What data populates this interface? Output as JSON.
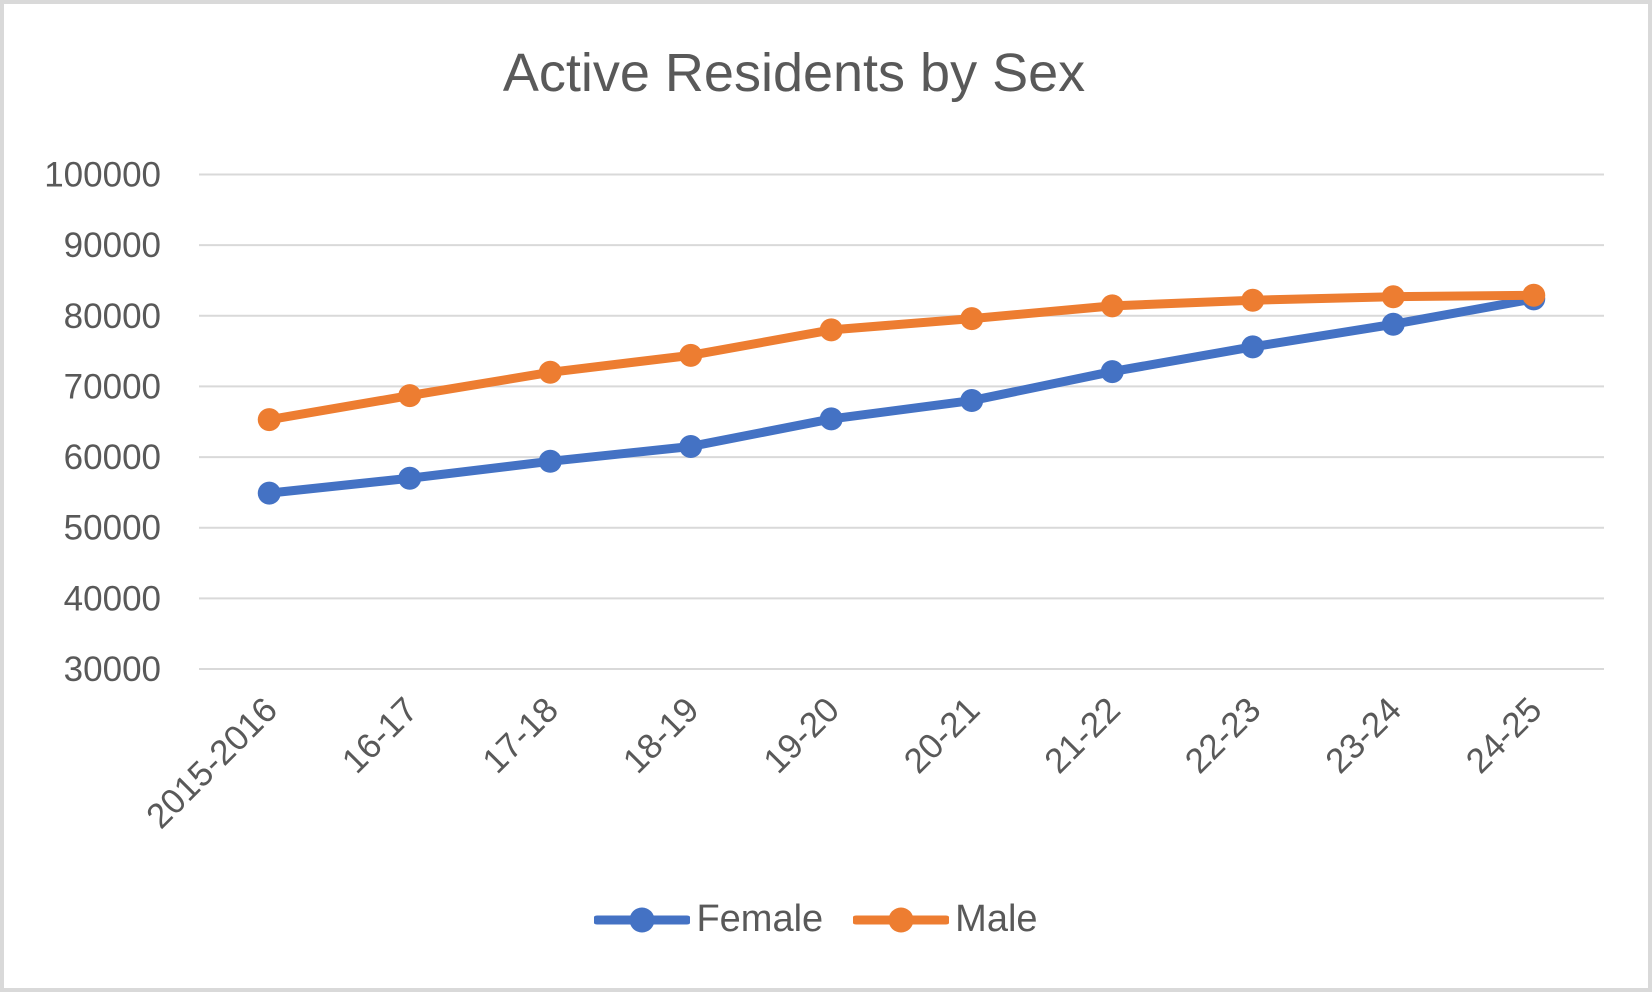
{
  "chart_title": "Active Residents by Sex",
  "colors": {
    "female": "#4472C4",
    "male": "#ED7D31",
    "grid": "#D9D9D9",
    "axis_text": "#595959",
    "title_text": "#595959",
    "frame_border": "#D9D9D9",
    "background": "#FFFFFF"
  },
  "legend": {
    "items": [
      {
        "label": "Female",
        "color": "#4472C4",
        "marker": "line-with-circle-icon"
      },
      {
        "label": "Male",
        "color": "#ED7D31",
        "marker": "line-with-circle-icon"
      }
    ],
    "position": "bottom-center"
  },
  "chart_data": {
    "type": "line",
    "title": "Active Residents by Sex",
    "categories": [
      "2015-2016",
      "16-17",
      "17-18",
      "18-19",
      "19-20",
      "20-21",
      "21-22",
      "22-23",
      "23-24",
      "24-25"
    ],
    "series": [
      {
        "name": "Female",
        "color": "#4472C4",
        "values": [
          54900,
          57000,
          59400,
          61500,
          65400,
          68000,
          72100,
          75600,
          78800,
          82400
        ]
      },
      {
        "name": "Male",
        "color": "#ED7D31",
        "values": [
          65300,
          68700,
          72000,
          74400,
          78000,
          79600,
          81400,
          82200,
          82700,
          82900
        ]
      }
    ],
    "y_ticks": [
      100000,
      90000,
      80000,
      70000,
      60000,
      50000,
      40000,
      30000
    ],
    "ylim": [
      30000,
      100000
    ],
    "xlabel": "",
    "ylabel": "",
    "grid": "horizontal",
    "legend_position": "bottom",
    "marker": "circle",
    "x_label_rotation_deg": 45
  }
}
